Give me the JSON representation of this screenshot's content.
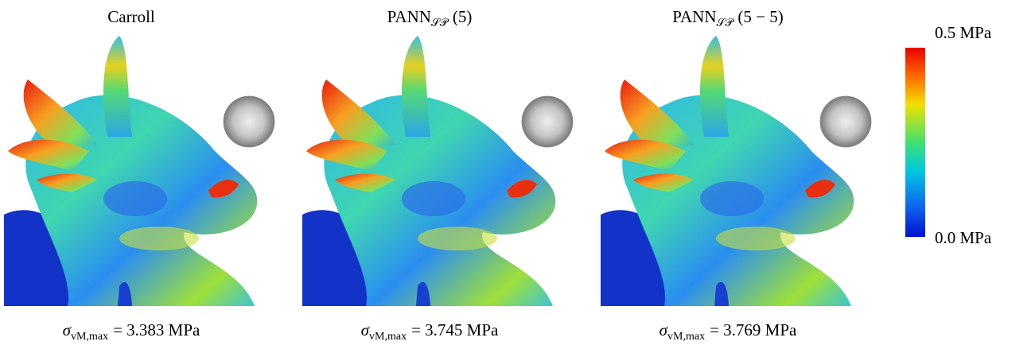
{
  "panels": [
    {
      "title": {
        "main": "Carroll"
      },
      "caption": {
        "symbol": "σ",
        "sub": "vM,max",
        "rest": "= 3.383 MPa"
      }
    },
    {
      "title": {
        "main": "PANN",
        "sub": "𝒮𝒫",
        "rest": "(5)"
      },
      "caption": {
        "symbol": "σ",
        "sub": "vM,max",
        "rest": "= 3.745 MPa"
      }
    },
    {
      "title": {
        "main": "PANN",
        "sub": "𝒮𝒫",
        "rest": "(5 − 5)"
      },
      "caption": {
        "symbol": "σ",
        "sub": "vM,max",
        "rest": "= 3.769 MPa"
      }
    }
  ],
  "colorbar": {
    "top_label": "0.5 MPa",
    "bottom_label": "0.0 MPa"
  }
}
